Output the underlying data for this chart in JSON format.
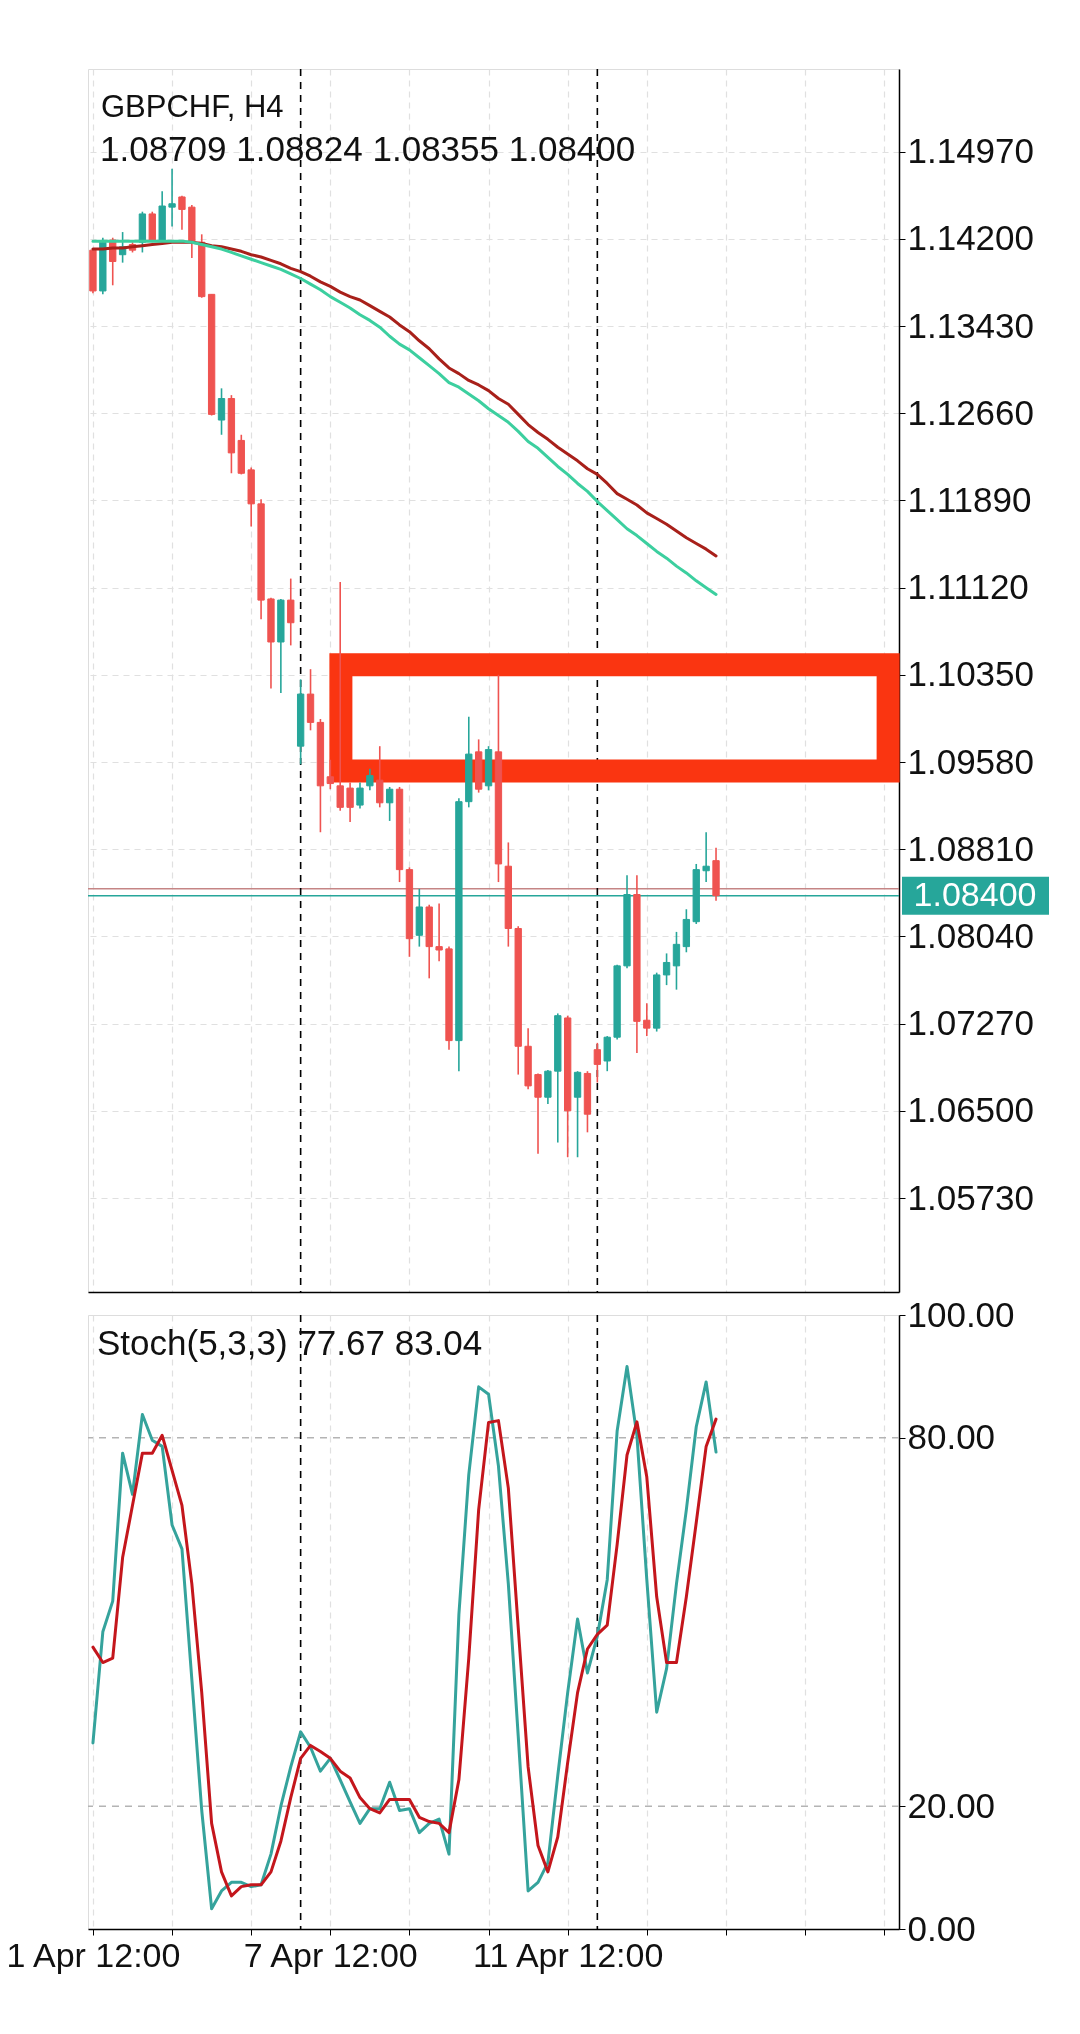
{
  "chart_data": [
    {
      "type": "candlestick",
      "title": "GBPCHF, H4",
      "subtitle": "1.08709 1.08824 1.08355 1.08400",
      "categories": [
        null,
        null,
        null,
        null,
        null,
        null,
        null,
        null,
        null,
        null,
        null,
        null,
        null,
        null,
        null,
        null,
        null,
        null,
        null,
        null,
        null,
        null,
        null,
        null,
        null,
        null,
        null,
        null,
        null,
        null,
        null,
        null,
        null,
        null,
        null,
        null,
        null,
        null,
        null,
        null,
        null,
        null,
        null,
        null,
        null,
        null,
        null,
        null,
        null,
        null,
        null,
        null,
        null,
        null,
        null,
        null,
        null,
        null,
        null,
        null,
        null,
        null,
        null,
        null,
        null,
        null,
        null,
        null,
        null,
        null,
        null,
        null,
        null,
        null,
        null,
        null,
        null,
        null,
        null,
        null,
        null,
        null
      ],
      "ohlc": [
        [
          1.141,
          1.1412,
          1.1372,
          1.1374
        ],
        [
          1.1374,
          1.1421,
          1.1371,
          1.1417
        ],
        [
          1.1419,
          1.1421,
          1.1379,
          1.14
        ],
        [
          1.1406,
          1.1426,
          1.1399,
          1.1413
        ],
        [
          1.1415,
          1.1417,
          1.1408,
          1.141
        ],
        [
          1.1417,
          1.1444,
          1.1408,
          1.1442
        ],
        [
          1.1442,
          1.1444,
          1.1417,
          1.1419
        ],
        [
          1.1419,
          1.1462,
          1.1418,
          1.1449
        ],
        [
          1.1448,
          1.1482,
          1.1431,
          1.1451
        ],
        [
          1.1457,
          1.1458,
          1.1428,
          1.1446
        ],
        [
          1.1448,
          1.145,
          1.1403,
          1.1417
        ],
        [
          1.1417,
          1.1424,
          1.1368,
          1.1369
        ],
        [
          1.1371,
          1.1371,
          1.1264,
          1.1265
        ],
        [
          1.126,
          1.1288,
          1.1247,
          1.1279
        ],
        [
          1.1279,
          1.1282,
          1.1213,
          1.1231
        ],
        [
          1.1242,
          1.1247,
          1.1212,
          1.1213
        ],
        [
          1.1216,
          1.1218,
          1.1166,
          1.1186
        ],
        [
          1.1186,
          1.119,
          1.1084,
          1.1101
        ],
        [
          1.1102,
          1.1103,
          1.1023,
          1.1064
        ],
        [
          1.1064,
          1.1102,
          1.1019,
          1.1101
        ],
        [
          1.1101,
          1.112,
          1.1061,
          1.1081
        ],
        [
          1.0972,
          1.1031,
          1.0956,
          1.1018
        ],
        [
          1.1018,
          1.104,
          1.0986,
          1.0993
        ],
        [
          1.0993,
          1.0996,
          1.0896,
          1.0937
        ],
        [
          1.0945,
          1.096,
          1.0934,
          1.0939
        ],
        [
          1.0937,
          1.1117,
          1.0915,
          1.0918
        ],
        [
          1.0935,
          1.094,
          1.0905,
          1.0918
        ],
        [
          1.092,
          1.094,
          1.0917,
          1.0935
        ],
        [
          1.0937,
          1.0952,
          1.0933,
          1.0946
        ],
        [
          1.0942,
          1.0972,
          1.0918,
          1.0922
        ],
        [
          1.0922,
          1.0936,
          1.0906,
          1.0934
        ],
        [
          1.0934,
          1.0936,
          1.0852,
          1.0863
        ],
        [
          1.0863,
          1.0865,
          1.0786,
          1.0802
        ],
        [
          1.0805,
          1.0846,
          1.0795,
          1.083
        ],
        [
          1.083,
          1.0832,
          1.0767,
          1.0795
        ],
        [
          1.0795,
          1.0833,
          1.0782,
          1.0792
        ],
        [
          1.0793,
          1.0795,
          1.0704,
          1.0712
        ],
        [
          1.0712,
          1.0926,
          1.0685,
          1.0923
        ],
        [
          1.0923,
          1.0998,
          1.0918,
          1.0965
        ],
        [
          1.0967,
          1.0978,
          1.0931,
          1.0934
        ],
        [
          1.0937,
          1.0972,
          1.0933,
          1.0969
        ],
        [
          1.0967,
          1.1035,
          1.0852,
          1.0868
        ],
        [
          1.0866,
          1.0887,
          1.0795,
          1.0811
        ],
        [
          1.0811,
          1.0813,
          1.0682,
          1.0707
        ],
        [
          1.0707,
          1.0723,
          1.0669,
          1.0672
        ],
        [
          1.0682,
          1.0683,
          1.0612,
          1.0662
        ],
        [
          1.0662,
          1.0686,
          1.0656,
          1.0685
        ],
        [
          1.0685,
          1.0736,
          1.0622,
          1.0734
        ],
        [
          1.0732,
          1.0734,
          1.0609,
          1.065
        ],
        [
          1.0662,
          1.0685,
          1.0609,
          1.0684
        ],
        [
          1.0683,
          1.0685,
          1.0631,
          1.0647
        ],
        [
          1.0704,
          1.071,
          1.0675,
          1.0691
        ],
        [
          1.0694,
          1.0716,
          1.0685,
          1.0715
        ],
        [
          1.0715,
          1.0779,
          1.0713,
          1.0778
        ],
        [
          1.0778,
          1.0858,
          1.0776,
          1.0841
        ],
        [
          1.0841,
          1.0858,
          1.0701,
          1.0729
        ],
        [
          1.073,
          1.0745,
          1.0716,
          1.0723
        ],
        [
          1.0723,
          1.0772,
          1.072,
          1.077
        ],
        [
          1.077,
          1.0789,
          1.0761,
          1.0781
        ],
        [
          1.0778,
          1.0808,
          1.0757,
          1.0797
        ],
        [
          1.0795,
          1.0828,
          1.079,
          1.0819
        ],
        [
          1.0817,
          1.0868,
          1.0815,
          1.0863
        ],
        [
          1.0862,
          1.0896,
          1.0852,
          1.0866
        ],
        [
          1.08709,
          1.08824,
          1.08355,
          1.084
        ],
        null,
        null,
        null,
        null,
        null,
        null,
        null,
        null,
        null,
        null,
        null,
        null,
        null,
        null,
        null,
        null,
        null,
        null
      ],
      "colors": [
        "#ef5350",
        "#26a69a",
        "#ef5350",
        "#26a69a",
        "#ef5350",
        "#26a69a",
        "#ef5350",
        "#26a69a",
        "#26a69a",
        "#ef5350",
        "#ef5350",
        "#ef5350",
        "#ef5350",
        "#26a69a",
        "#ef5350",
        "#ef5350",
        "#ef5350",
        "#ef5350",
        "#ef5350",
        "#26a69a",
        "#ef5350",
        "#26a69a",
        "#ef5350",
        "#ef5350",
        "#ef5350",
        "#ef5350",
        "#ef5350",
        "#26a69a",
        "#26a69a",
        "#ef5350",
        "#26a69a",
        "#ef5350",
        "#ef5350",
        "#26a69a",
        "#ef5350",
        "#ef5350",
        "#ef5350",
        "#26a69a",
        "#26a69a",
        "#ef5350",
        "#26a69a",
        "#ef5350",
        "#ef5350",
        "#ef5350",
        "#ef5350",
        "#ef5350",
        "#26a69a",
        "#26a69a",
        "#ef5350",
        "#26a69a",
        "#ef5350",
        "#ef5350",
        "#26a69a",
        "#26a69a",
        "#26a69a",
        "#ef5350",
        "#ef5350",
        "#26a69a",
        "#26a69a",
        "#26a69a",
        "#26a69a",
        "#26a69a",
        "#26a69a",
        "#ef5350",
        null,
        null,
        null,
        null,
        null,
        null,
        null,
        null,
        null,
        null,
        null,
        null,
        null,
        null,
        null,
        null,
        null,
        null
      ],
      "series": [
        {
          "type": "line",
          "color": "#a8201a",
          "values": [
            1.1411,
            1.1411,
            1.1412,
            1.1412,
            1.1413,
            1.1414,
            1.1415,
            1.1416,
            1.1417,
            1.1417,
            1.1417,
            1.1416,
            1.1414,
            1.1413,
            1.1411,
            1.1409,
            1.1406,
            1.1404,
            1.1401,
            1.1398,
            1.1394,
            1.1391,
            1.1387,
            1.1382,
            1.1378,
            1.1373,
            1.1369,
            1.1366,
            1.1361,
            1.1356,
            1.1351,
            1.1344,
            1.1338,
            1.133,
            1.1323,
            1.1314,
            1.1306,
            1.1301,
            1.1295,
            1.1291,
            1.1286,
            1.1279,
            1.1274,
            1.1265,
            1.1256,
            1.1249,
            1.1243,
            1.1236,
            1.123,
            1.1224,
            1.1217,
            1.1212,
            1.1204,
            1.1195,
            1.119,
            1.1185,
            1.1178,
            1.1173,
            1.1168,
            1.1162,
            1.1156,
            1.1151,
            1.1146,
            1.114,
            null,
            null,
            null,
            null,
            null,
            null,
            null,
            null,
            null,
            null,
            null,
            null,
            null,
            null,
            null,
            null,
            null,
            null
          ]
        },
        {
          "type": "line",
          "color": "#3ccf9f",
          "values": [
            1.1418,
            1.1418,
            1.1418,
            1.1418,
            1.1418,
            1.1418,
            1.1418,
            1.1418,
            1.1418,
            1.1418,
            1.1417,
            1.1415,
            1.1413,
            1.1411,
            1.1408,
            1.1405,
            1.1402,
            1.1399,
            1.1396,
            1.1393,
            1.1389,
            1.1385,
            1.138,
            1.1375,
            1.1369,
            1.1364,
            1.1359,
            1.1353,
            1.1348,
            1.1342,
            1.1334,
            1.1327,
            1.1322,
            1.1315,
            1.1308,
            1.1301,
            1.1293,
            1.1289,
            1.1283,
            1.1277,
            1.127,
            1.1264,
            1.1258,
            1.125,
            1.1241,
            1.1235,
            1.1227,
            1.1219,
            1.1212,
            1.1204,
            1.1197,
            1.1188,
            1.118,
            1.1172,
            1.1164,
            1.1158,
            1.1151,
            1.1144,
            1.1138,
            1.1131,
            1.1125,
            1.1118,
            1.1112,
            1.1106,
            null,
            null,
            null,
            null,
            null,
            null,
            null,
            null,
            null,
            null,
            null,
            null,
            null,
            null,
            null,
            null,
            null,
            null
          ]
        }
      ],
      "ylim": [
        1.049,
        1.157
      ],
      "yticks": [
        {
          "value": 1.0573,
          "label": "1.05730"
        },
        {
          "value": 1.065,
          "label": "1.06500"
        },
        {
          "value": 1.0727,
          "label": "1.07270"
        },
        {
          "value": 1.0804,
          "label": "1.08040"
        },
        {
          "value": 1.0881,
          "label": "1.08810"
        },
        {
          "value": 1.0958,
          "label": "1.09580"
        },
        {
          "value": 1.1035,
          "label": "1.10350"
        },
        {
          "value": 1.1112,
          "label": "1.11120"
        },
        {
          "value": 1.1189,
          "label": "1.11890"
        },
        {
          "value": 1.1266,
          "label": "1.12660"
        },
        {
          "value": 1.1343,
          "label": "1.13430"
        },
        {
          "value": 1.142,
          "label": "1.14200"
        },
        {
          "value": 1.1497,
          "label": "1.14970"
        }
      ],
      "grid": true,
      "tick_labels": "y",
      "ref_lines": [
        {
          "axis": "y",
          "value": 1.0846,
          "color": "#c58585"
        },
        {
          "axis": "y",
          "value": 1.084,
          "label": "1.08400",
          "color": "#26a69a"
        }
      ]
    },
    {
      "type": "line",
      "title": "Stoch(5,3,3) 77.67 83.04",
      "categories": [
        "1 Apr 12:00",
        null,
        null,
        null,
        null,
        null,
        null,
        null,
        null,
        null,
        null,
        null,
        null,
        null,
        null,
        null,
        null,
        null,
        null,
        null,
        null,
        null,
        null,
        null,
        "7 Apr 12:00",
        null,
        null,
        null,
        null,
        null,
        null,
        null,
        null,
        null,
        null,
        null,
        null,
        null,
        null,
        null,
        null,
        null,
        null,
        null,
        null,
        null,
        null,
        null,
        "11 Apr 12:00",
        null,
        null,
        null,
        null,
        null,
        null,
        null,
        null,
        null,
        null,
        null,
        null,
        null,
        null,
        null,
        null,
        null,
        null,
        null,
        null,
        null,
        null,
        null,
        null,
        null,
        null,
        null,
        null,
        null,
        null,
        null,
        null,
        null
      ],
      "series": [
        {
          "color": "#35a39c",
          "values": [
            30.3,
            48.4,
            53.4,
            77.5,
            70.8,
            83.8,
            79.6,
            78.6,
            65.8,
            61.9,
            40.6,
            19.3,
            3.3,
            6.2,
            7.6,
            7.6,
            6.9,
            7.2,
            12.2,
            20.0,
            26.4,
            32.1,
            29.6,
            25.7,
            27.8,
            24.3,
            20.7,
            17.2,
            19.6,
            19.6,
            23.9,
            19.3,
            19.6,
            15.7,
            17.2,
            17.9,
            12.2,
            51.2,
            74.0,
            88.3,
            87.1,
            75.4,
            56.2,
            31.4,
            6.2,
            7.6,
            10.8,
            25.0,
            38.5,
            50.5,
            41.7,
            47.7,
            56.9,
            81.1,
            91.6,
            80.4,
            56.9,
            35.3,
            42.4,
            56.2,
            68.3,
            81.8,
            89.1,
            77.67,
            null,
            null,
            null,
            null,
            null,
            null,
            null,
            null,
            null,
            null,
            null,
            null,
            null,
            null,
            null,
            null,
            null,
            null
          ]
        },
        {
          "color": "#c4161c",
          "values": [
            45.9,
            43.4,
            44.1,
            60.5,
            69.0,
            77.5,
            77.5,
            80.4,
            74.7,
            69.0,
            56.2,
            38.5,
            17.2,
            9.3,
            5.4,
            6.9,
            7.2,
            7.2,
            9.3,
            14.3,
            21.4,
            27.8,
            29.9,
            28.9,
            27.8,
            25.7,
            24.6,
            21.4,
            19.6,
            18.9,
            21.1,
            21.1,
            21.1,
            18.2,
            17.5,
            17.2,
            15.7,
            24.3,
            44.1,
            68.3,
            82.5,
            82.8,
            71.8,
            49.1,
            26.4,
            13.6,
            9.3,
            15.0,
            27.1,
            38.5,
            45.6,
            48.0,
            49.5,
            62.6,
            77.2,
            82.6,
            73.6,
            54.1,
            43.4,
            43.4,
            54.1,
            66.2,
            78.6,
            83.04,
            null,
            null,
            null,
            null,
            null,
            null,
            null,
            null,
            null,
            null,
            null,
            null,
            null,
            null,
            null,
            null,
            null,
            null
          ]
        }
      ],
      "ylim": [
        0,
        100
      ],
      "yticks": [
        {
          "value": 0,
          "label": "0.00"
        },
        {
          "value": 20,
          "label": "20.00"
        },
        {
          "value": 80,
          "label": "80.00"
        },
        {
          "value": 100,
          "label": "100.00"
        }
      ],
      "grid": "x",
      "ref_lines": [
        {
          "axis": "y",
          "value": 80,
          "color": "#b4b4b4",
          "line_style": "dashed"
        },
        {
          "axis": "y",
          "value": 20,
          "color": "#b4b4b4",
          "line_style": "dashed"
        }
      ]
    }
  ]
}
